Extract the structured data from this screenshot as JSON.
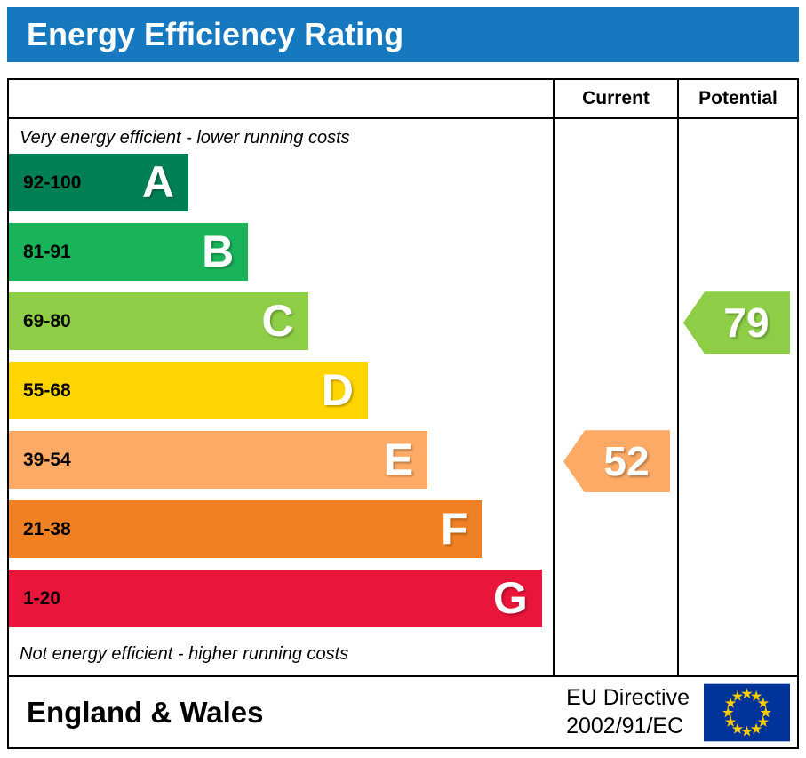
{
  "title": "Energy Efficiency Rating",
  "columns": {
    "current": "Current",
    "potential": "Potential"
  },
  "notes": {
    "top": "Very energy efficient - lower running costs",
    "bottom": "Not energy efficient - higher running costs"
  },
  "footer": {
    "region": "England & Wales",
    "directive": [
      "EU Directive",
      "2002/91/EC"
    ]
  },
  "colors": {
    "header_bg": "#1679c0",
    "header_text": "#ffffff",
    "border": "#000000",
    "flag_bg": "#003399",
    "flag_star": "#ffcc00"
  },
  "chart_data": {
    "type": "bar",
    "subtype": "epc-energy-efficiency-rating",
    "title": "Energy Efficiency Rating",
    "bands": [
      {
        "letter": "A",
        "range": "92-100",
        "color": "#008054",
        "width_pct": 33
      },
      {
        "letter": "B",
        "range": "81-91",
        "color": "#19b459",
        "width_pct": 44
      },
      {
        "letter": "C",
        "range": "69-80",
        "color": "#8dce46",
        "width_pct": 55
      },
      {
        "letter": "D",
        "range": "55-68",
        "color": "#ffd500",
        "width_pct": 66
      },
      {
        "letter": "E",
        "range": "39-54",
        "color": "#fcaa65",
        "width_pct": 77
      },
      {
        "letter": "F",
        "range": "21-38",
        "color": "#ef8023",
        "width_pct": 87
      },
      {
        "letter": "G",
        "range": "1-20",
        "color": "#e9153b",
        "width_pct": 98
      }
    ],
    "current": {
      "value": 52,
      "band": "E",
      "color": "#fcaa65"
    },
    "potential": {
      "value": 79,
      "band": "C",
      "color": "#8dce46"
    }
  }
}
